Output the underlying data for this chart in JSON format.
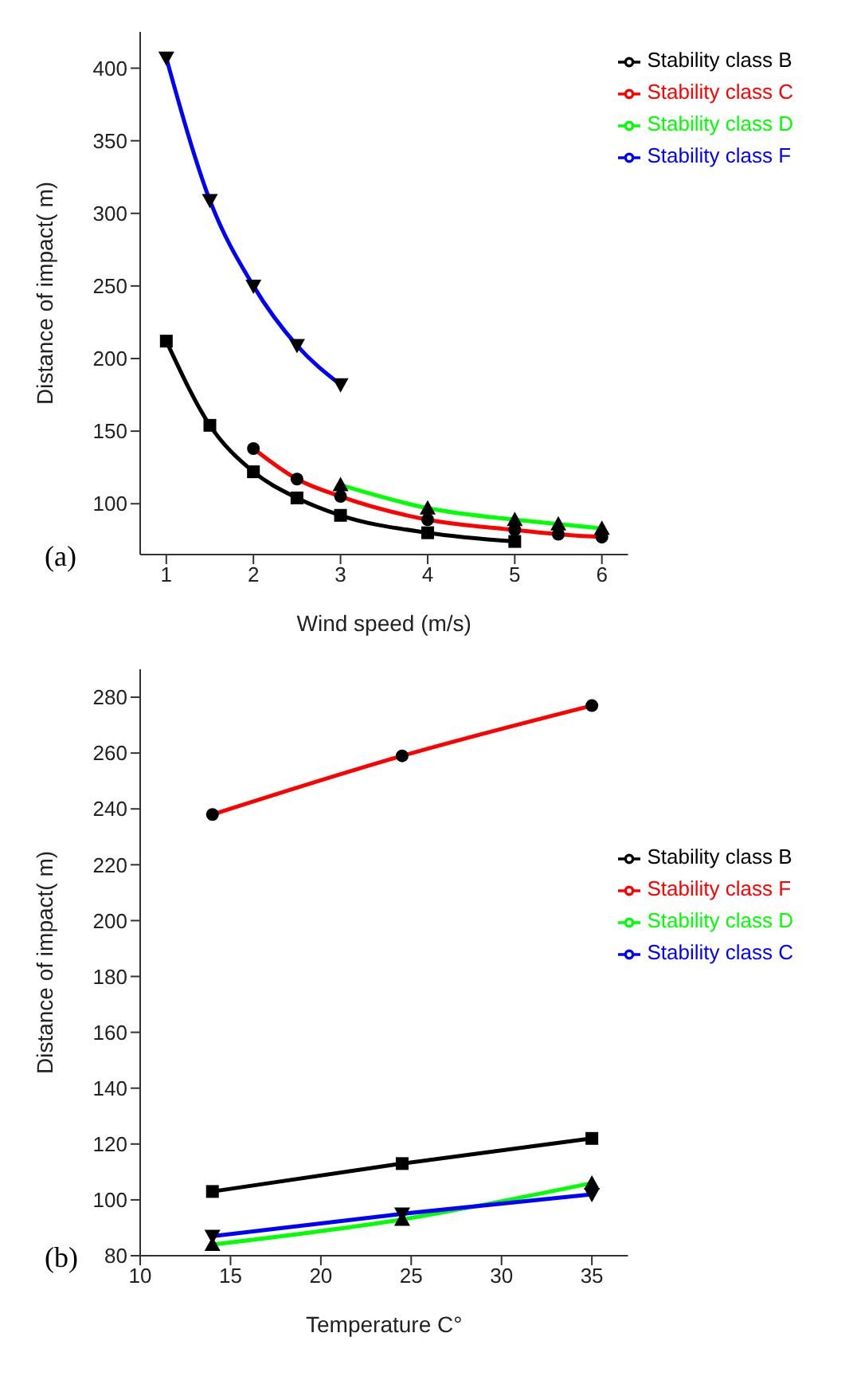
{
  "chart_data": [
    {
      "type": "line",
      "xlabel": "Wind speed (m/s)",
      "ylabel": "Distance of impact( m)",
      "annotations": [
        "(a)"
      ],
      "xlim": [
        0.7,
        6.3
      ],
      "xticks": [
        1,
        2,
        3,
        4,
        5,
        6
      ],
      "ylim": [
        65,
        425
      ],
      "yticks": [
        100,
        150,
        200,
        250,
        300,
        350,
        400
      ],
      "grid": false,
      "legend": "top right",
      "series": [
        {
          "name": "Stability class B",
          "color": "#000000",
          "marker": "square",
          "x": [
            1,
            1.5,
            2,
            2.5,
            3,
            4,
            5
          ],
          "values": [
            212,
            154,
            122,
            104,
            92,
            80,
            74
          ]
        },
        {
          "name": "Stability class C",
          "color": "#ff0000",
          "marker": "circle",
          "x": [
            2,
            2.5,
            3,
            4,
            5,
            5.5,
            6
          ],
          "values": [
            138,
            117,
            105,
            89,
            82,
            79,
            77
          ]
        },
        {
          "name": "Stability class D",
          "color": "#00ff00",
          "marker": "triangle",
          "x": [
            3,
            4,
            5,
            5.5,
            6
          ],
          "values": [
            113,
            97,
            89,
            86,
            83
          ]
        },
        {
          "name": "Stability class F",
          "color": "#0000ff",
          "marker": "triangle-down",
          "x": [
            1,
            1.5,
            2,
            2.5,
            3
          ],
          "values": [
            407,
            309,
            250,
            209,
            182
          ]
        }
      ]
    },
    {
      "type": "line",
      "xlabel": "Temperature C°",
      "ylabel": "Distance of impact( m)",
      "annotations": [
        "(b)"
      ],
      "xlim": [
        10,
        37
      ],
      "xticks": [
        10,
        15,
        20,
        25,
        30,
        35
      ],
      "ylim": [
        80,
        290
      ],
      "yticks": [
        80,
        100,
        120,
        140,
        160,
        180,
        200,
        220,
        240,
        260,
        280
      ],
      "grid": false,
      "legend": "right",
      "series": [
        {
          "name": "Stability class B",
          "color": "#000000",
          "marker": "square",
          "x": [
            14,
            24.5,
            35
          ],
          "values": [
            103,
            113,
            122
          ]
        },
        {
          "name": "Stability class F",
          "color": "#ff0000",
          "marker": "circle",
          "x": [
            14,
            24.5,
            35
          ],
          "values": [
            238,
            259,
            277
          ]
        },
        {
          "name": "Stability class D",
          "color": "#00ff00",
          "marker": "triangle",
          "x": [
            14,
            24.5,
            35
          ],
          "values": [
            84,
            93,
            106
          ]
        },
        {
          "name": "Stability class C",
          "color": "#0000ff",
          "marker": "triangle-down",
          "x": [
            14,
            24.5,
            35
          ],
          "values": [
            87,
            95,
            102
          ]
        }
      ]
    }
  ]
}
